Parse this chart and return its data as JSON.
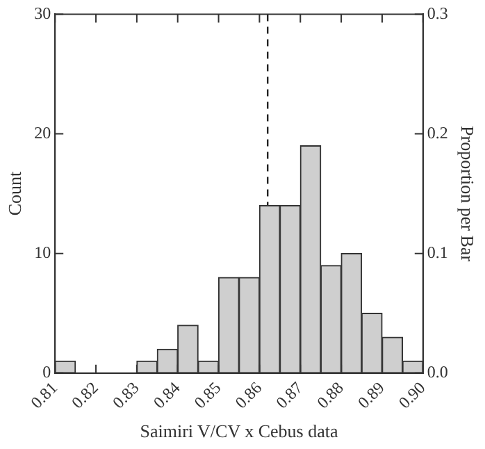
{
  "chart_data": {
    "type": "histogram",
    "xlabel": "Saimiri V/CV x Cebus data",
    "ylabel": "Count",
    "y2label": "Proportion per Bar",
    "bins": [
      0.81,
      0.815,
      0.82,
      0.825,
      0.83,
      0.835,
      0.84,
      0.845,
      0.85,
      0.855,
      0.86,
      0.865,
      0.87,
      0.875,
      0.88,
      0.885,
      0.89,
      0.895,
      0.9
    ],
    "values": [
      1,
      0,
      0,
      0,
      1,
      2,
      4,
      1,
      8,
      8,
      14,
      14,
      19,
      9,
      10,
      5,
      3,
      1
    ],
    "color": "#cfcfcf",
    "xlim": [
      0.81,
      0.9
    ],
    "xticks": [
      0.81,
      0.82,
      0.83,
      0.84,
      0.85,
      0.86,
      0.87,
      0.88,
      0.89,
      {
        "value": 0.9,
        "label": "0.90"
      }
    ],
    "ylim": [
      0,
      30
    ],
    "yticks": [
      0,
      10,
      20,
      30
    ],
    "y2lim": [
      0,
      0.3
    ],
    "y2ticks": [
      {
        "value": 0,
        "label": "0.0"
      },
      0.1,
      0.2,
      0.3
    ],
    "ref_lines": [
      {
        "axis": "x",
        "value": 0.862,
        "line_style": "dashed"
      }
    ],
    "grid": false,
    "legend": false
  }
}
